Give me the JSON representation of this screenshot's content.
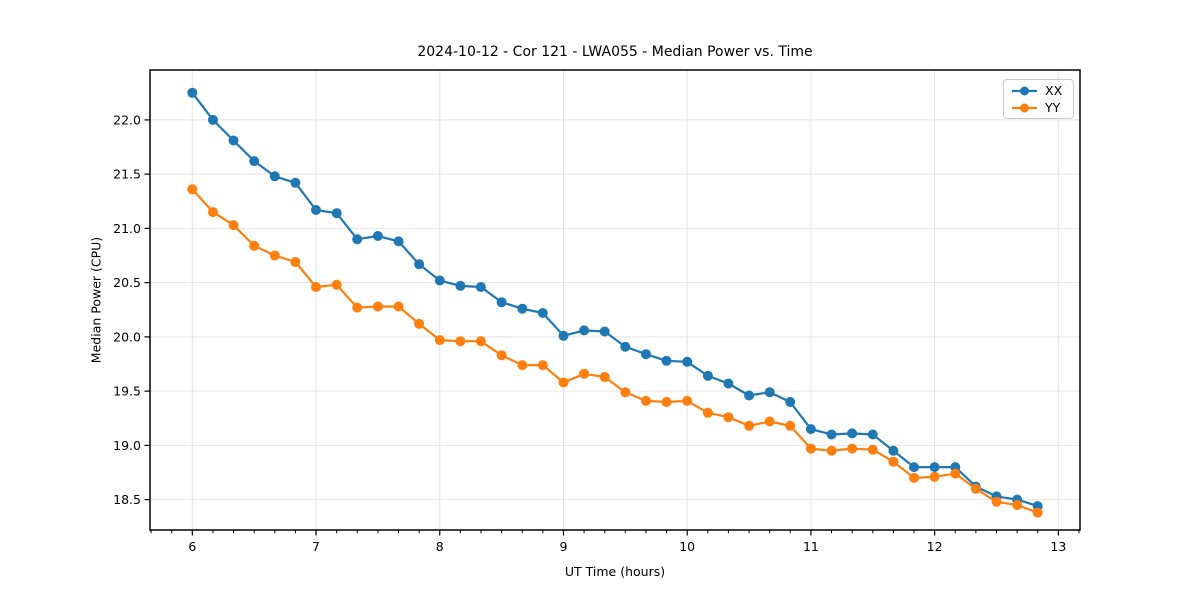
{
  "chart_data": {
    "type": "line",
    "title": "2024-10-12 - Cor 121 - LWA055 - Median Power vs. Time",
    "xlabel": "UT Time (hours)",
    "ylabel": "Median Power (CPU)",
    "x": [
      6.0,
      6.167,
      6.333,
      6.5,
      6.667,
      6.833,
      7.0,
      7.167,
      7.333,
      7.5,
      7.667,
      7.833,
      8.0,
      8.167,
      8.333,
      8.5,
      8.667,
      8.833,
      9.0,
      9.167,
      9.333,
      9.5,
      9.667,
      9.833,
      10.0,
      10.167,
      10.333,
      10.5,
      10.667,
      10.833,
      11.0,
      11.167,
      11.333,
      11.5,
      11.667,
      11.833,
      12.0,
      12.167,
      12.333,
      12.5,
      12.667,
      12.833
    ],
    "series": [
      {
        "name": "XX",
        "color": "#1f77b4",
        "values": [
          22.25,
          22.0,
          21.81,
          21.62,
          21.48,
          21.42,
          21.17,
          21.14,
          20.9,
          20.93,
          20.88,
          20.67,
          20.52,
          20.47,
          20.46,
          20.32,
          20.26,
          20.22,
          20.01,
          20.06,
          20.05,
          19.91,
          19.84,
          19.78,
          19.77,
          19.64,
          19.57,
          19.46,
          19.49,
          19.4,
          19.15,
          19.1,
          19.11,
          19.1,
          18.95,
          18.8,
          18.8,
          18.8,
          18.62,
          18.53,
          18.5,
          18.44
        ]
      },
      {
        "name": "YY",
        "color": "#ff7f0e",
        "values": [
          21.36,
          21.15,
          21.03,
          20.84,
          20.75,
          20.69,
          20.46,
          20.48,
          20.27,
          20.28,
          20.28,
          20.12,
          19.97,
          19.96,
          19.96,
          19.83,
          19.74,
          19.74,
          19.58,
          19.66,
          19.63,
          19.49,
          19.41,
          19.4,
          19.41,
          19.3,
          19.26,
          19.18,
          19.22,
          19.18,
          18.97,
          18.95,
          18.97,
          18.96,
          18.85,
          18.7,
          18.71,
          18.74,
          18.6,
          18.48,
          18.45,
          18.38
        ]
      }
    ],
    "xlim": [
      5.658,
      13.175
    ],
    "ylim": [
      18.22,
      22.46
    ],
    "xticks": [
      6,
      7,
      8,
      9,
      10,
      11,
      12,
      13
    ],
    "yticks": [
      18.5,
      19.0,
      19.5,
      20.0,
      20.5,
      21.0,
      21.5,
      22.0
    ],
    "x_minor_tick_step": 0.16667,
    "grid": true,
    "legend_position": "upper right",
    "marker": "o"
  },
  "colors": {
    "grid": "#e4e4e4",
    "spine": "#000000",
    "tick_text": "#000000",
    "background": "#ffffff",
    "legend_border": "#cccccc"
  }
}
